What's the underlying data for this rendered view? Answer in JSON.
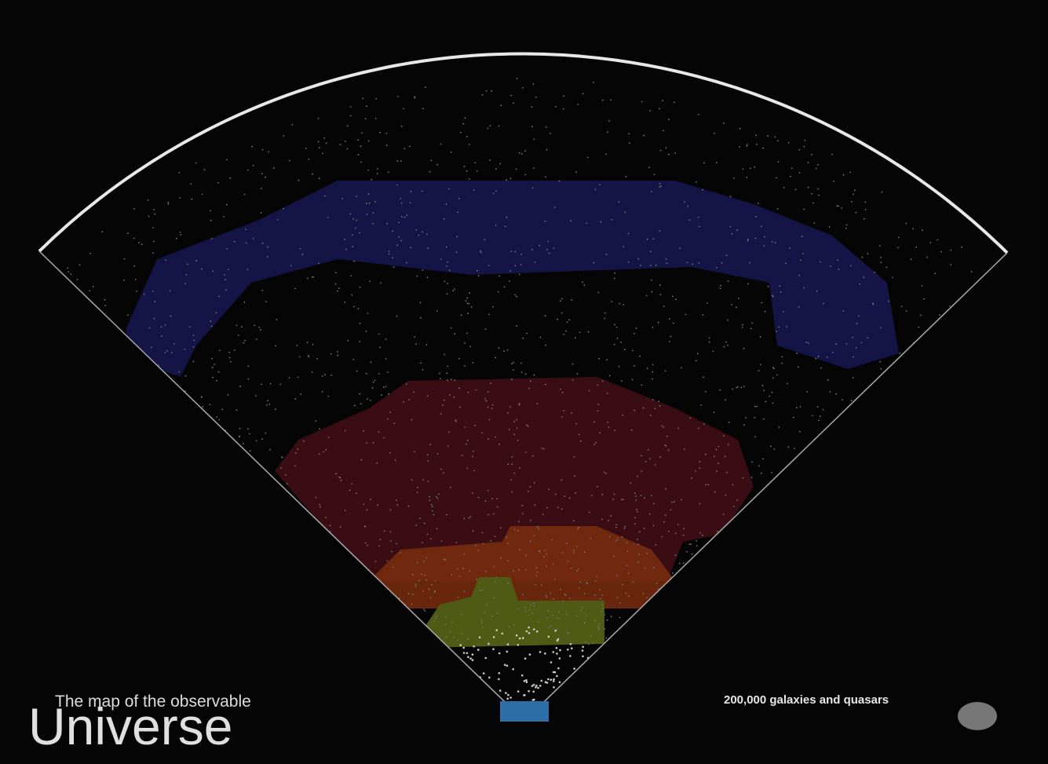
{
  "poster": {
    "subtitle": "The map of the observable",
    "title": "Universe",
    "legend_heading": "200,000 galaxies and quasars"
  }
}
